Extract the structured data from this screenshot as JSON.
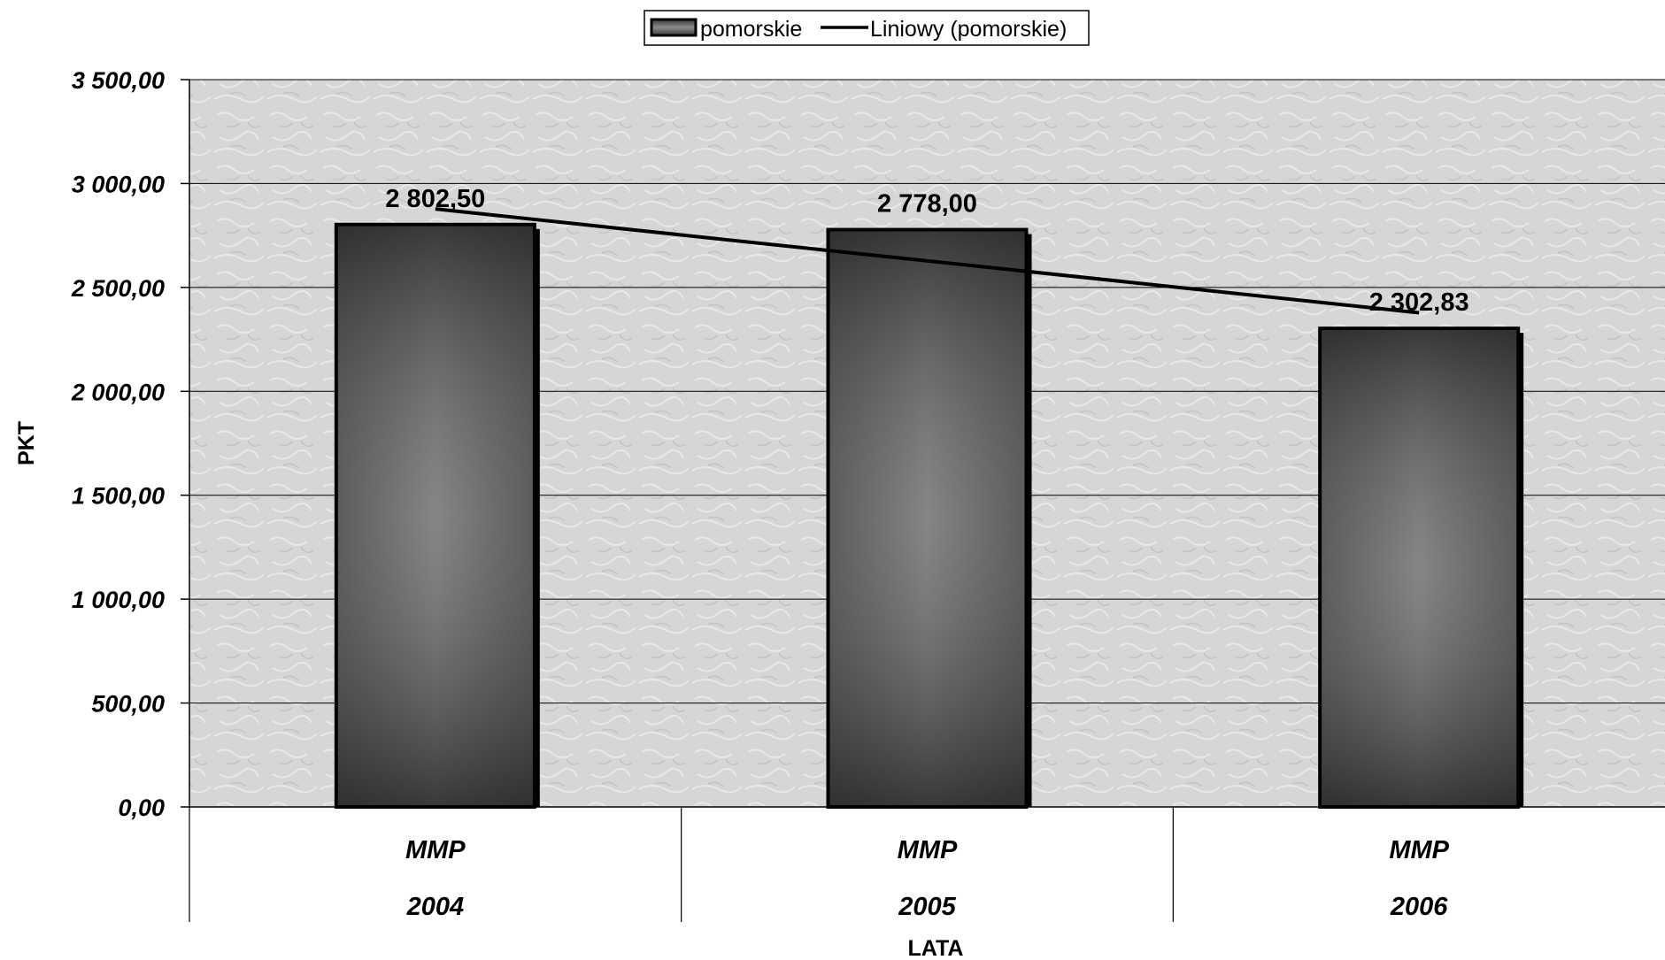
{
  "chart_data": {
    "type": "bar",
    "categories": [
      [
        "MMP",
        "2004"
      ],
      [
        "MMP",
        "2005"
      ],
      [
        "MMP",
        "2006"
      ]
    ],
    "series": [
      {
        "name": "pomorskie",
        "values": [
          2802.5,
          2778.0,
          2302.83
        ],
        "labels": [
          "2 802,50",
          "2 778,00",
          "2 302,83"
        ]
      }
    ],
    "trendline": {
      "name": "Liniowy (pomorskie)",
      "type": "linear",
      "of_series": "pomorskie"
    },
    "xlabel": "LATA",
    "ylabel": "PKT",
    "ylim": [
      0,
      3500
    ],
    "yticks": [
      0,
      500,
      1000,
      1500,
      2000,
      2500,
      3000,
      3500
    ],
    "ytick_labels": [
      "0,00",
      "500,00",
      "1 000,00",
      "1 500,00",
      "2 000,00",
      "2 500,00",
      "3 000,00",
      "3 500,00"
    ],
    "grid": true,
    "legend_position": "top-center",
    "colors": {
      "bar_edge": "#000000",
      "bar_dark": "#3a3a3a",
      "bar_light": "#8a8a8a",
      "plot_bg": "#d9d9d9",
      "trend": "#000000"
    }
  }
}
